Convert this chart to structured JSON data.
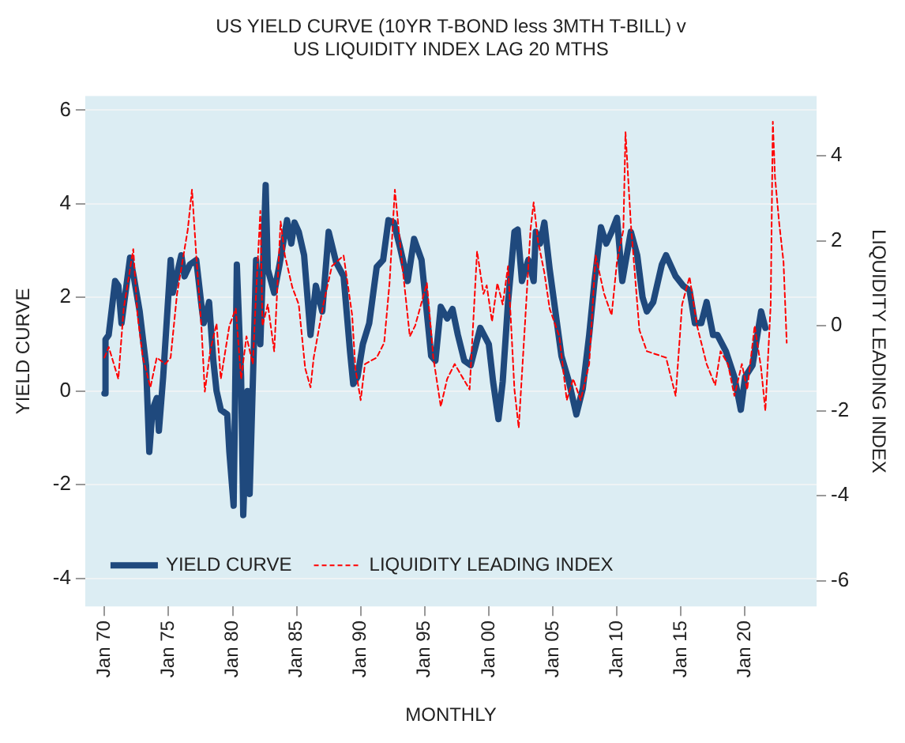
{
  "chart_data": {
    "type": "line",
    "title": "US YIELD CURVE (10YR T-BOND less 3MTH T-BILL) v\nUS LIQUIDITY INDEX LAG 20 MTHS",
    "xlabel": "MONTHLY",
    "ylabel": "YIELD CURVE",
    "y2label": "LIQUIDITY LEADING INDEX",
    "xlim": [
      "1968-07",
      "2025-08"
    ],
    "xticks": [
      {
        "value": "1970-01",
        "label": "Jan 70"
      },
      {
        "value": "1975-01",
        "label": "Jan 75"
      },
      {
        "value": "1980-01",
        "label": "Jan 80"
      },
      {
        "value": "1985-01",
        "label": "Jan 85"
      },
      {
        "value": "1990-01",
        "label": "Jan 90"
      },
      {
        "value": "1995-01",
        "label": "Jan 95"
      },
      {
        "value": "2000-01",
        "label": "Jan 00"
      },
      {
        "value": "2005-01",
        "label": "Jan 05"
      },
      {
        "value": "2010-01",
        "label": "Jan 10"
      },
      {
        "value": "2015-01",
        "label": "Jan 15"
      },
      {
        "value": "2020-01",
        "label": "Jan 20"
      }
    ],
    "ylim": [
      -4.6,
      6.3
    ],
    "yticks": [
      -4,
      -2,
      0,
      2,
      4,
      6
    ],
    "y2lim": [
      -6.6,
      5.4
    ],
    "y2ticks": [
      -6,
      -4,
      -2,
      0,
      2,
      4
    ],
    "grid": "y",
    "legend": "bottom left",
    "series": [
      {
        "name": "YIELD CURVE",
        "color": "#1f497d",
        "line_style": "solid",
        "marker": "none",
        "x": [
          "1970-01",
          "1970-02",
          "1970-05",
          "1970-11",
          "1971-02",
          "1971-05",
          "1972-01",
          "1972-04",
          "1972-10",
          "1973-04",
          "1973-07",
          "1973-10",
          "1974-02",
          "1974-04",
          "1974-08",
          "1975-03",
          "1975-05",
          "1976-01",
          "1976-04",
          "1976-09",
          "1977-03",
          "1977-08",
          "1977-10",
          "1978-03",
          "1978-07",
          "1978-10",
          "1979-02",
          "1979-08",
          "1979-10",
          "1980-02",
          "1980-05",
          "1980-09",
          "1980-11",
          "1981-03",
          "1981-05",
          "1981-09",
          "1981-11",
          "1982-03",
          "1982-08",
          "1982-10",
          "1983-04",
          "1983-09",
          "1984-04",
          "1984-08",
          "1984-11",
          "1985-03",
          "1985-08",
          "1986-02",
          "1986-07",
          "1987-01",
          "1987-07",
          "1988-02",
          "1988-09",
          "1989-03",
          "1989-06",
          "1989-10",
          "1990-03",
          "1990-09",
          "1991-04",
          "1991-10",
          "1992-03",
          "1992-08",
          "1993-02",
          "1993-09",
          "1994-03",
          "1994-10",
          "1995-07",
          "1995-11",
          "1996-04",
          "1996-10",
          "1997-03",
          "1997-08",
          "1998-02",
          "1998-08",
          "1999-05",
          "2000-01",
          "2000-05",
          "2000-10",
          "2001-02",
          "2001-07",
          "2002-01",
          "2002-04",
          "2002-08",
          "2003-02",
          "2003-07",
          "2003-09",
          "2004-01",
          "2004-05",
          "2004-10",
          "2005-09",
          "2006-04",
          "2006-11",
          "2007-05",
          "2007-11",
          "2008-04",
          "2008-10",
          "2009-03",
          "2009-08",
          "2010-01",
          "2010-06",
          "2011-02",
          "2011-08",
          "2012-01",
          "2012-05",
          "2012-11",
          "2013-07",
          "2013-11",
          "2014-08",
          "2015-03",
          "2015-09",
          "2016-02",
          "2016-08",
          "2017-01",
          "2017-07",
          "2017-11",
          "2018-07",
          "2019-03",
          "2019-09",
          "2020-01",
          "2020-08",
          "2021-04",
          "2021-08"
        ],
        "values": [
          -0.05,
          1.1,
          1.2,
          2.35,
          2.25,
          1.45,
          2.85,
          2.5,
          1.7,
          0.55,
          -1.3,
          -0.4,
          -0.15,
          -0.85,
          0.3,
          2.8,
          2.1,
          2.9,
          2.45,
          2.7,
          2.8,
          1.8,
          1.45,
          1.9,
          0.65,
          0,
          -0.4,
          -0.5,
          -1.3,
          -2.45,
          2.7,
          0.3,
          -2.65,
          0,
          -2.2,
          1.0,
          2.8,
          1.0,
          4.4,
          2.6,
          2.1,
          2.7,
          3.65,
          3.15,
          3.6,
          3.4,
          2.9,
          1.2,
          2.25,
          1.7,
          3.4,
          2.75,
          2.45,
          0.85,
          0.15,
          0.3,
          1.0,
          1.45,
          2.65,
          2.8,
          3.65,
          3.6,
          3.05,
          2.35,
          3.25,
          2.8,
          0.75,
          0.65,
          1.8,
          1.55,
          1.75,
          1.2,
          0.65,
          0.55,
          1.35,
          1.0,
          0.2,
          -0.6,
          0.2,
          1.9,
          3.4,
          3.45,
          2.35,
          2.8,
          2.35,
          3.4,
          3.15,
          3.6,
          2.6,
          0.75,
          0.2,
          -0.5,
          0.05,
          1.2,
          2.35,
          3.5,
          3.15,
          3.4,
          3.7,
          2.35,
          3.4,
          2.9,
          2.0,
          1.7,
          1.9,
          2.7,
          2.9,
          2.45,
          2.25,
          2.15,
          1.45,
          1.45,
          1.9,
          1.2,
          1.2,
          0.85,
          0.3,
          -0.4,
          0.3,
          0.55,
          1.7,
          1.35
        ]
      },
      {
        "name": "LIQUIDITY LEADING INDEX",
        "color": "#ff0000",
        "axis": "y2",
        "line_style": "dashed",
        "marker": "none",
        "x": [
          "1970-01",
          "1970-05",
          "1971-02",
          "1971-07",
          "1972-04",
          "1972-08",
          "1973-01",
          "1973-08",
          "1974-02",
          "1974-10",
          "1975-03",
          "1975-09",
          "1976-02",
          "1976-07",
          "1976-11",
          "1977-03",
          "1977-08",
          "1977-11",
          "1978-04",
          "1978-10",
          "1979-02",
          "1979-10",
          "1980-04",
          "1980-09",
          "1981-02",
          "1981-08",
          "1981-11",
          "1982-03",
          "1982-05",
          "1982-10",
          "1983-04",
          "1983-10",
          "1984-02",
          "1984-09",
          "1985-03",
          "1985-09",
          "1986-02",
          "1986-05",
          "1987-02",
          "1987-10",
          "1988-09",
          "1989-05",
          "1989-08",
          "1990-01",
          "1990-05",
          "1991-04",
          "1991-11",
          "1992-04",
          "1992-09",
          "1993-03",
          "1993-11",
          "1994-04",
          "1995-03",
          "1995-09",
          "1996-04",
          "1996-10",
          "1997-05",
          "1998-07",
          "1999-02",
          "1999-08",
          "1999-11",
          "2000-04",
          "2000-09",
          "2001-02",
          "2001-07",
          "2002-01",
          "2002-05",
          "2002-11",
          "2003-04",
          "2003-07",
          "2003-11",
          "2004-05",
          "2004-10",
          "2005-07",
          "2006-02",
          "2006-08",
          "2007-03",
          "2007-11",
          "2008-05",
          "2009-01",
          "2009-08",
          "2010-01",
          "2010-07",
          "2010-09",
          "2011-02",
          "2011-10",
          "2012-05",
          "2013-11",
          "2014-08",
          "2015-02",
          "2015-09",
          "2016-04",
          "2017-01",
          "2017-09",
          "2018-02",
          "2018-09",
          "2019-03",
          "2019-10",
          "2020-03",
          "2020-10",
          "2021-04",
          "2021-08",
          "2022-01",
          "2022-03",
          "2022-05",
          "2022-09",
          "2023-01",
          "2023-04"
        ],
        "values": [
          -0.75,
          -0.5,
          -1.25,
          0.4,
          1.8,
          0.25,
          -0.75,
          -1.45,
          -0.75,
          -0.9,
          -0.75,
          0.75,
          1.5,
          2.25,
          3.2,
          1.65,
          -0.1,
          -1.55,
          -0.6,
          0.05,
          -1.25,
          0,
          0.4,
          -1.25,
          -0.25,
          -0.9,
          0.75,
          2.7,
          0,
          0.5,
          -0.6,
          2.45,
          1.65,
          0.9,
          0.5,
          -1.0,
          -1.45,
          -0.75,
          0.5,
          1.4,
          1.65,
          0.25,
          -1.0,
          -1.75,
          -0.9,
          -0.75,
          -0.4,
          1.0,
          3.2,
          1.65,
          -0.25,
          0,
          1.0,
          -0.75,
          -1.9,
          -1.25,
          -0.9,
          -1.5,
          1.75,
          0.75,
          0.95,
          0.1,
          1.0,
          0.5,
          1.4,
          -1.5,
          -2.4,
          0.1,
          2.25,
          2.9,
          2.0,
          1.25,
          0.4,
          -0.25,
          -1.75,
          -1.25,
          -1.75,
          -0.9,
          1.65,
          0.75,
          0.25,
          1.5,
          2.25,
          4.55,
          2.4,
          -0.1,
          -0.6,
          -0.75,
          -1.65,
          0.5,
          1.15,
          0,
          -0.9,
          -1.4,
          -0.6,
          -0.9,
          -1.65,
          -0.9,
          -1.5,
          0,
          -1.0,
          -2.0,
          0.5,
          4.8,
          3.5,
          2.4,
          1.5,
          -0.4
        ]
      }
    ]
  }
}
